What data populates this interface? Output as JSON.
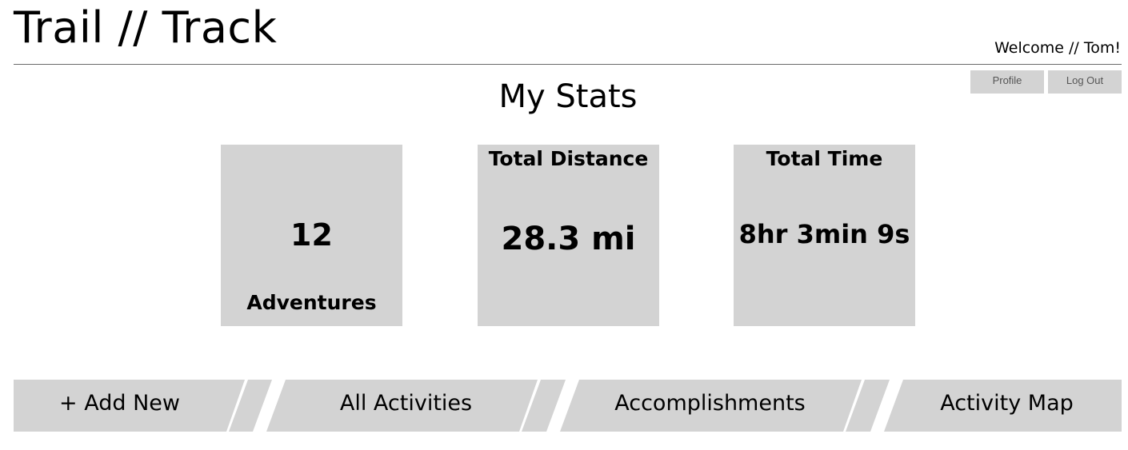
{
  "header": {
    "app_title": "Trail // Track",
    "welcome": "Welcome // Tom!",
    "profile_label": "Profile",
    "logout_label": "Log Out"
  },
  "main": {
    "title": "My Stats",
    "cards": {
      "adventures": {
        "value": "12",
        "label": "Adventures"
      },
      "distance": {
        "label": "Total Distance",
        "value": "28.3 mi"
      },
      "time": {
        "label": "Total Time",
        "value": "8hr 3min 9s"
      }
    }
  },
  "nav": {
    "add_new": "+ Add New",
    "all_activities": "All Activities",
    "accomplishments": "Accomplishments",
    "activity_map": "Activity Map"
  },
  "colors": {
    "panel": "#d3d3d3",
    "rule": "#6a6a6a",
    "text": "#000000"
  }
}
